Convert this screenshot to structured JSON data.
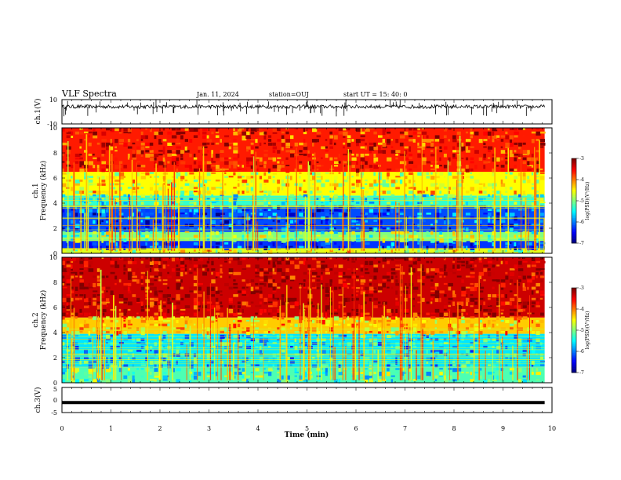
{
  "header": {
    "title": "VLF Spectra",
    "date": "Jan. 11, 2024",
    "station": "station=OUJ",
    "start": "start  UT  =   15: 40: 0"
  },
  "colors": {
    "frame": "#000000",
    "trace": "#000000"
  },
  "chart_data": [
    {
      "type": "line",
      "panel": "ch1_waveform",
      "ylabel": "ch.1(V)",
      "ylim": [
        -10,
        10
      ],
      "ytick_labels": [
        "10",
        "-10"
      ],
      "x_range_min": [
        0,
        9.85
      ],
      "baseline_v": 4.2,
      "amplitude_v": 1.5
    },
    {
      "type": "heatmap",
      "panel": "ch1_spectrogram",
      "ylabel_line1": "ch.1",
      "ylabel_line2": "Frequency  (kHz)",
      "ylim": [
        0,
        10
      ],
      "ytick_labels": [
        "0",
        "2",
        "4",
        "6",
        "8",
        "10"
      ],
      "colorbar": {
        "label": "log(PSD)(V²/Hz)",
        "range": [
          -7,
          -3
        ],
        "tick_labels": [
          "-7",
          "-6",
          "-5",
          "-4",
          "-3"
        ]
      },
      "description_rows_khz": [
        {
          "from": 0,
          "to": 0.4,
          "level": -4.6
        },
        {
          "from": 0.4,
          "to": 1.0,
          "level": -6.3
        },
        {
          "from": 1.0,
          "to": 1.7,
          "level": -5.0
        },
        {
          "from": 1.7,
          "to": 3.8,
          "level": -6.2
        },
        {
          "from": 3.8,
          "to": 4.6,
          "level": -5.3
        },
        {
          "from": 4.6,
          "to": 6.5,
          "level": -4.5
        },
        {
          "from": 6.5,
          "to": 10.0,
          "level": -3.6
        }
      ]
    },
    {
      "type": "heatmap",
      "panel": "ch2_spectrogram",
      "ylabel_line1": "ch.2",
      "ylabel_line2": "Frequency  (kHz)",
      "ylim": [
        0,
        10
      ],
      "ytick_labels": [
        "0",
        "2",
        "4",
        "6",
        "8",
        "10"
      ],
      "colorbar": {
        "label": "log(PSD)(V²/Hz)",
        "range": [
          -7,
          -3
        ],
        "tick_labels": [
          "-7",
          "-6",
          "-5",
          "-4",
          "-3"
        ]
      },
      "description_rows_khz": [
        {
          "from": 0,
          "to": 1.2,
          "level": -5.2
        },
        {
          "from": 1.2,
          "to": 3.9,
          "level": -5.6
        },
        {
          "from": 3.9,
          "to": 5.2,
          "level": -4.3
        },
        {
          "from": 5.2,
          "to": 10.0,
          "level": -3.3
        }
      ]
    },
    {
      "type": "line",
      "panel": "ch3_waveform",
      "ylabel": "ch.3(V)",
      "ylim": [
        -5,
        5
      ],
      "ytick_labels": [
        "5",
        "0",
        "-5"
      ],
      "constant_v": -1.0,
      "x_range_min": [
        0,
        9.85
      ]
    }
  ],
  "xaxis": {
    "label": "Time  (min)",
    "range": [
      0,
      10
    ],
    "tick_labels": [
      "0",
      "1",
      "2",
      "3",
      "4",
      "5",
      "6",
      "7",
      "8",
      "9",
      "10"
    ]
  }
}
